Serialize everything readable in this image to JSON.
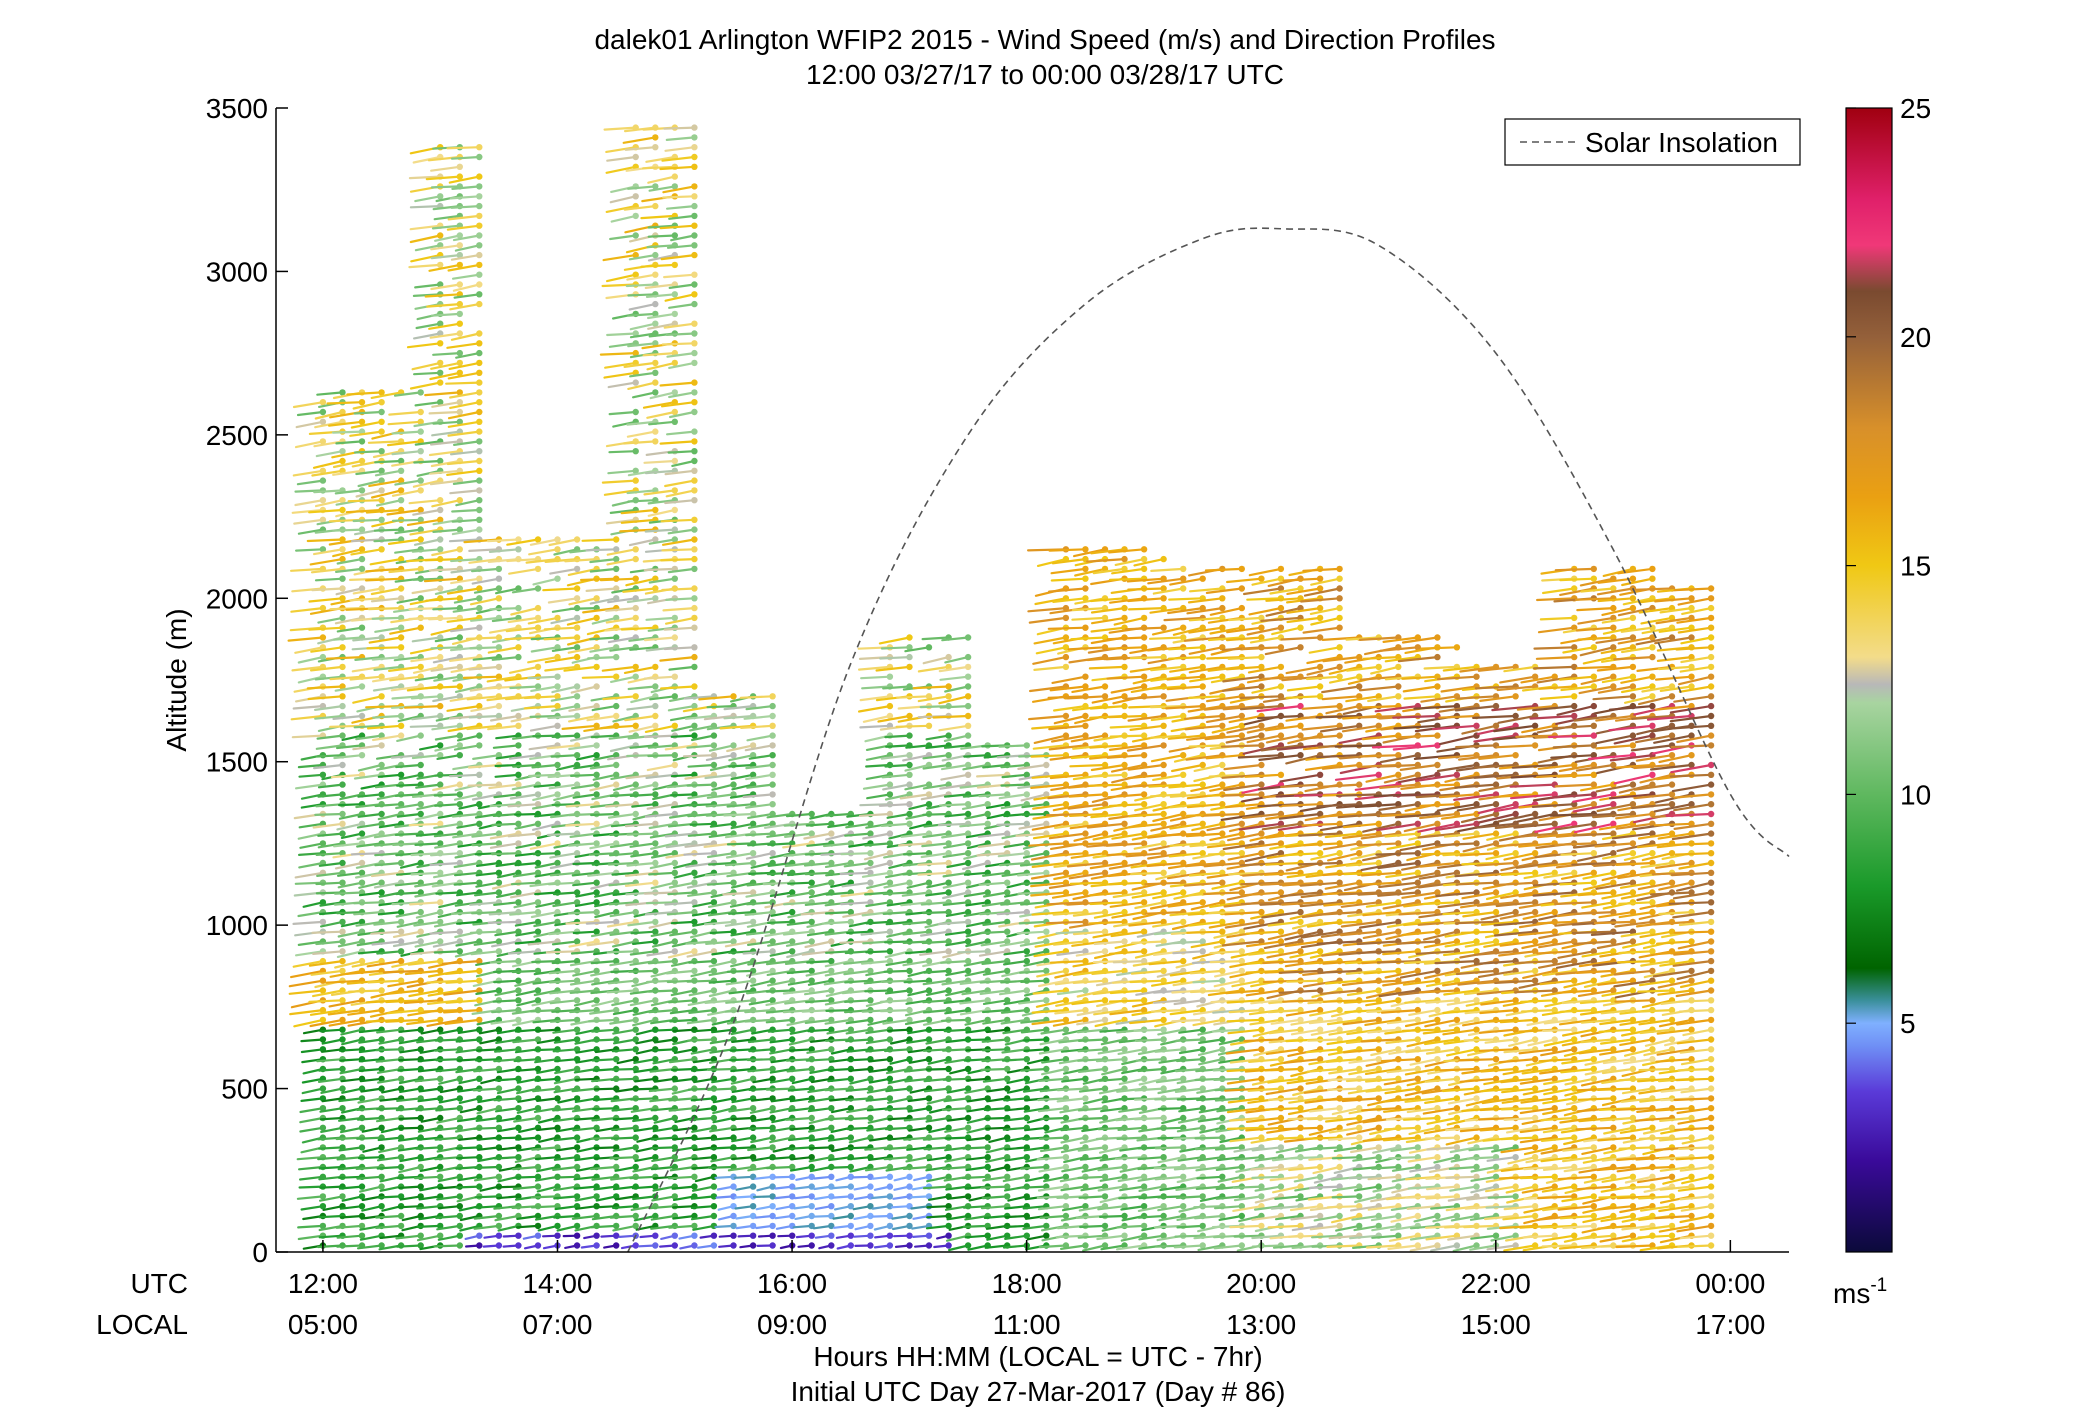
{
  "chart_data": {
    "type": "scatter",
    "title": "dalek01 Arlington WFIP2 2015 - Wind Speed (m/s) and Direction Profiles",
    "subtitle": "12:00 03/27/17 to 00:00 03/28/17  UTC",
    "ylabel": "Altitude (m)",
    "xlabel": "Hours HH:MM  (LOCAL = UTC - 7hr)",
    "xlabel2": "Initial UTC Day 27-Mar-2017 (Day # 86)",
    "row_label_utc": "UTC",
    "row_label_local": "LOCAL",
    "ylim": [
      0,
      3500
    ],
    "yticks": [
      0,
      500,
      1000,
      1500,
      2000,
      2500,
      3000,
      3500
    ],
    "ytick_labels": [
      "0",
      "500",
      "1000",
      "1500",
      "2000",
      "2500",
      "3000",
      "3500"
    ],
    "xlim_hours": [
      11.6,
      24.5
    ],
    "xticks_hours": [
      12,
      14,
      16,
      18,
      20,
      22,
      24
    ],
    "xtick_labels_utc": [
      "12:00",
      "14:00",
      "16:00",
      "18:00",
      "20:00",
      "22:00",
      "00:00"
    ],
    "xtick_labels_local": [
      "05:00",
      "07:00",
      "09:00",
      "11:00",
      "13:00",
      "15:00",
      "17:00"
    ],
    "legend": {
      "entries": [
        {
          "label": "Solar Insolation",
          "style": "dashed",
          "color": "#555555"
        }
      ],
      "position": "top-right"
    },
    "solar_insolation": {
      "x_hours": [
        14.6,
        15.5,
        16.5,
        17.5,
        18.5,
        19.5,
        20.2,
        21.0,
        22.0,
        23.0,
        24.0,
        24.5
      ],
      "altitude_equiv": [
        0,
        700,
        1800,
        2500,
        2900,
        3100,
        3130,
        3080,
        2750,
        2150,
        1400,
        1210
      ]
    },
    "profiles_hour_start": 12.0,
    "profiles_hour_end": 24.0,
    "profiles_hour_step": 0.1667,
    "barb_direction_deg_typical": 250,
    "colorbar": {
      "min": 0,
      "max": 25,
      "ticks": [
        5,
        10,
        15,
        20,
        25
      ],
      "tick_labels": [
        "5",
        "10",
        "15",
        "20",
        "25"
      ],
      "unit_label": "ms",
      "unit_exponent": "-1",
      "stops": [
        {
          "v": 0,
          "color": "#0b0a3a"
        },
        {
          "v": 2,
          "color": "#3a0a9a"
        },
        {
          "v": 3.5,
          "color": "#5a3ad8"
        },
        {
          "v": 4.5,
          "color": "#6f8ff5"
        },
        {
          "v": 5,
          "color": "#7fb0ff"
        },
        {
          "v": 5.5,
          "color": "#3a8f9a"
        },
        {
          "v": 6.2,
          "color": "#006400"
        },
        {
          "v": 8,
          "color": "#1a9a2a"
        },
        {
          "v": 10,
          "color": "#5fb85f"
        },
        {
          "v": 12,
          "color": "#a8d4a0"
        },
        {
          "v": 12.4,
          "color": "#b8b8b8"
        },
        {
          "v": 13,
          "color": "#f3dc8a"
        },
        {
          "v": 15,
          "color": "#f0c814"
        },
        {
          "v": 16.5,
          "color": "#eaa012"
        },
        {
          "v": 18,
          "color": "#d8902a"
        },
        {
          "v": 20,
          "color": "#94603a"
        },
        {
          "v": 21,
          "color": "#7a4a30"
        },
        {
          "v": 22,
          "color": "#f03878"
        },
        {
          "v": 23,
          "color": "#e0206a"
        },
        {
          "v": 25,
          "color": "#a00010"
        }
      ]
    }
  }
}
